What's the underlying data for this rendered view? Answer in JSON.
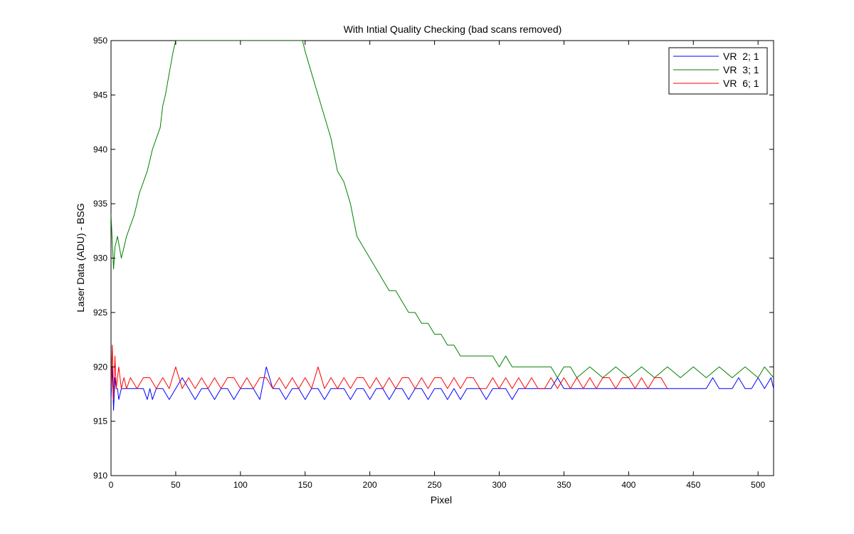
{
  "chart_data": {
    "type": "line",
    "title": "With Intial Quality Checking (bad scans removed)",
    "xlabel": "Pixel",
    "ylabel": "Laser Data (ADU) - BSG",
    "xlim": [
      0,
      512
    ],
    "ylim": [
      910,
      950
    ],
    "xticks": [
      0,
      50,
      100,
      150,
      200,
      250,
      300,
      350,
      400,
      450,
      500
    ],
    "yticks": [
      910,
      915,
      920,
      925,
      930,
      935,
      940,
      945,
      950
    ],
    "grid": false,
    "legend_position": "top-right",
    "series": [
      {
        "name": "VR  2; 1",
        "color": "#0000ff",
        "x": [
          0,
          1,
          2,
          3,
          4,
          5,
          6,
          8,
          10,
          15,
          20,
          25,
          28,
          30,
          32,
          35,
          40,
          45,
          50,
          55,
          60,
          65,
          70,
          75,
          80,
          85,
          90,
          95,
          100,
          105,
          110,
          115,
          120,
          125,
          130,
          135,
          140,
          145,
          150,
          155,
          160,
          165,
          170,
          175,
          180,
          185,
          190,
          195,
          200,
          205,
          210,
          215,
          220,
          225,
          230,
          235,
          240,
          245,
          250,
          255,
          260,
          265,
          270,
          275,
          280,
          285,
          290,
          295,
          300,
          305,
          310,
          315,
          320,
          325,
          330,
          335,
          340,
          345,
          350,
          355,
          360,
          365,
          370,
          375,
          380,
          385,
          390,
          395,
          400,
          405,
          410,
          415,
          420,
          425,
          430,
          435,
          440,
          445,
          450,
          455,
          460,
          465,
          470,
          475,
          480,
          485,
          490,
          495,
          500,
          505,
          510,
          512
        ],
        "values": [
          917,
          920,
          916,
          919,
          918,
          918,
          917,
          918,
          918,
          918,
          918,
          918,
          917,
          918,
          917,
          918,
          918,
          917,
          918,
          919,
          918,
          917,
          918,
          918,
          917,
          918,
          918,
          917,
          918,
          918,
          918,
          917,
          920,
          918,
          918,
          917,
          918,
          918,
          917,
          918,
          918,
          917,
          918,
          918,
          918,
          917,
          918,
          918,
          917,
          918,
          918,
          917,
          918,
          918,
          917,
          918,
          918,
          917,
          918,
          918,
          917,
          918,
          917,
          918,
          918,
          918,
          917,
          918,
          918,
          918,
          917,
          918,
          918,
          918,
          918,
          918,
          918,
          919,
          918,
          918,
          918,
          918,
          918,
          918,
          918,
          918,
          918,
          918,
          918,
          918,
          918,
          918,
          918,
          918,
          918,
          918,
          918,
          918,
          918,
          918,
          918,
          919,
          918,
          918,
          918,
          919,
          918,
          918,
          919,
          918,
          919,
          918
        ]
      },
      {
        "name": "VR  3; 1",
        "color": "#008000",
        "x": [
          0,
          2,
          3,
          5,
          8,
          10,
          12,
          15,
          18,
          20,
          22,
          25,
          28,
          30,
          32,
          35,
          38,
          40,
          42,
          45,
          48,
          50,
          148,
          150,
          155,
          160,
          165,
          170,
          175,
          180,
          185,
          190,
          195,
          200,
          205,
          210,
          215,
          220,
          225,
          230,
          235,
          240,
          245,
          250,
          255,
          260,
          265,
          270,
          275,
          280,
          285,
          290,
          295,
          300,
          305,
          310,
          315,
          320,
          325,
          330,
          335,
          340,
          345,
          350,
          355,
          360,
          370,
          380,
          390,
          400,
          410,
          420,
          430,
          440,
          450,
          460,
          470,
          480,
          490,
          500,
          505,
          512
        ],
        "values": [
          934,
          929,
          931,
          932,
          930,
          931,
          932,
          933,
          934,
          935,
          936,
          937,
          938,
          939,
          940,
          941,
          942,
          944,
          945,
          947,
          949,
          950,
          950,
          949,
          947,
          945,
          943,
          941,
          938,
          937,
          935,
          932,
          931,
          930,
          929,
          928,
          927,
          927,
          926,
          925,
          925,
          924,
          924,
          923,
          923,
          922,
          922,
          921,
          921,
          921,
          921,
          921,
          921,
          920,
          921,
          920,
          920,
          920,
          920,
          920,
          920,
          920,
          919,
          920,
          920,
          919,
          920,
          919,
          920,
          919,
          920,
          919,
          920,
          919,
          920,
          919,
          920,
          919,
          920,
          919,
          920,
          919
        ]
      },
      {
        "name": "VR  6; 1",
        "color": "#ff0000",
        "x": [
          0,
          1,
          2,
          3,
          4,
          5,
          6,
          8,
          10,
          12,
          15,
          20,
          25,
          30,
          35,
          40,
          45,
          50,
          55,
          60,
          65,
          70,
          75,
          80,
          85,
          90,
          95,
          100,
          105,
          110,
          115,
          120,
          125,
          130,
          135,
          140,
          145,
          150,
          155,
          160,
          165,
          170,
          175,
          180,
          185,
          190,
          195,
          200,
          205,
          210,
          215,
          220,
          225,
          230,
          235,
          240,
          245,
          250,
          255,
          260,
          265,
          270,
          275,
          280,
          285,
          290,
          295,
          300,
          305,
          310,
          315,
          320,
          325,
          330,
          335,
          340,
          345,
          350,
          355,
          360,
          365,
          370,
          375,
          380,
          385,
          390,
          395,
          400,
          405,
          410,
          415,
          420,
          425,
          430
        ],
        "values": [
          918,
          922,
          917,
          921,
          918,
          919,
          920,
          918,
          919,
          918,
          919,
          918,
          919,
          919,
          918,
          919,
          918,
          920,
          918,
          919,
          918,
          919,
          918,
          919,
          918,
          919,
          919,
          918,
          919,
          918,
          919,
          919,
          918,
          919,
          918,
          919,
          918,
          919,
          918,
          920,
          918,
          919,
          918,
          919,
          918,
          919,
          919,
          918,
          919,
          918,
          919,
          918,
          919,
          919,
          918,
          919,
          918,
          919,
          919,
          918,
          919,
          918,
          919,
          919,
          918,
          918,
          919,
          918,
          919,
          918,
          919,
          918,
          919,
          918,
          918,
          919,
          918,
          919,
          918,
          919,
          918,
          919,
          918,
          919,
          919,
          918,
          919,
          919,
          918,
          919,
          918,
          919,
          919,
          918
        ]
      }
    ]
  }
}
